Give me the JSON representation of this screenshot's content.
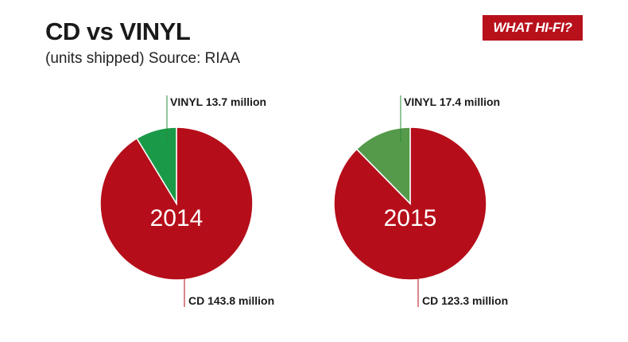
{
  "header": {
    "title": "CD vs VINYL",
    "subtitle": "(units shipped) Source: RIAA",
    "logo_text": "WHAT HI-FI?"
  },
  "colors": {
    "cd": "#b50e1a",
    "vinyl_2014": "#1a9a48",
    "vinyl_2015": "#559a4a",
    "leader": "#2a8a3a"
  },
  "chart_data": [
    {
      "type": "pie",
      "center_label": "2014",
      "unit": "million units",
      "slices": [
        {
          "name": "VINYL",
          "value": 13.7,
          "label": "VINYL 13.7 million"
        },
        {
          "name": "CD",
          "value": 143.8,
          "label": "CD 143.8 million"
        }
      ]
    },
    {
      "type": "pie",
      "center_label": "2015",
      "unit": "million units",
      "slices": [
        {
          "name": "VINYL",
          "value": 17.4,
          "label": "VINYL 17.4 million"
        },
        {
          "name": "CD",
          "value": 123.3,
          "label": "CD 123.3 million"
        }
      ]
    }
  ]
}
